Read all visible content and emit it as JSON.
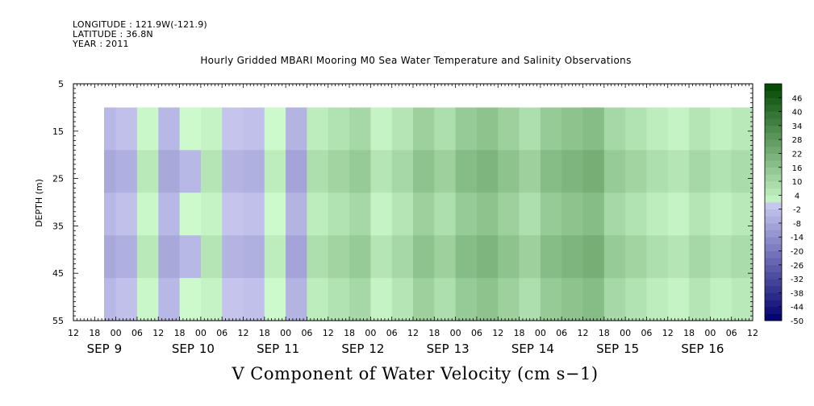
{
  "header": {
    "longitude": "LONGITUDE : 121.9W(-121.9)",
    "latitude": "LATITUDE : 36.8N",
    "year": "YEAR : 2011"
  },
  "chart_data": {
    "type": "heatmap",
    "title": "Hourly Gridded MBARI Mooring M0 Sea Water Temperature and Salinity Observations",
    "xlabel": "V Component of Water Velocity (cm s−1)",
    "ylabel": "DEPTH (m)",
    "y_range": [
      5,
      55
    ],
    "y_ticks": [
      5,
      15,
      25,
      35,
      45,
      55
    ],
    "y_inverted": true,
    "data_depth_range": [
      10,
      55
    ],
    "x_range_hours": [
      "SEP 8 12:00",
      "SEP 16 12:00"
    ],
    "hour_tick_labels": [
      "12",
      "18",
      "00",
      "06",
      "12",
      "18",
      "00",
      "06",
      "12",
      "18",
      "00",
      "06",
      "12",
      "18",
      "00",
      "06",
      "12",
      "18",
      "00",
      "06",
      "12",
      "18",
      "00",
      "06",
      "12",
      "18",
      "00",
      "06",
      "12",
      "18",
      "00",
      "06",
      "12"
    ],
    "data_start_hour_label": "SEP 8 18:00",
    "day_labels": [
      {
        "label": "SEP",
        "day": "9",
        "hour_index": 2
      },
      {
        "label": "SEP",
        "day": "10",
        "hour_index": 6
      },
      {
        "label": "SEP",
        "day": "11",
        "hour_index": 10
      },
      {
        "label": "SEP",
        "day": "12",
        "hour_index": 14
      },
      {
        "label": "SEP",
        "day": "13",
        "hour_index": 18
      },
      {
        "label": "SEP",
        "day": "14",
        "hour_index": 22
      },
      {
        "label": "SEP",
        "day": "15",
        "hour_index": 26
      },
      {
        "label": "SEP",
        "day": "16",
        "hour_index": 30
      }
    ],
    "colorbar": {
      "labels": [
        "46",
        "40",
        "34",
        "28",
        "22",
        "16",
        "10",
        "4",
        "-2",
        "-8",
        "-14",
        "-20",
        "-26",
        "-32",
        "-38",
        "-44",
        "-50"
      ],
      "range": [
        -50,
        52
      ],
      "step": 3,
      "colors": {
        "negative_max": "#000066",
        "zero": "#ddf5dd",
        "positive_max": "#004400"
      }
    },
    "profile_hours": [
      {
        "h": 6,
        "v": -6
      },
      {
        "h": 12,
        "v": -4
      },
      {
        "h": 18,
        "v": 3
      },
      {
        "h": 24,
        "v": -6
      },
      {
        "h": 30,
        "v": -2
      },
      {
        "h": 36,
        "v": 4
      },
      {
        "h": 42,
        "v": -3
      },
      {
        "h": 48,
        "v": -4
      },
      {
        "h": 54,
        "v": 2
      },
      {
        "h": 60,
        "v": -7
      },
      {
        "h": 66,
        "v": 6
      },
      {
        "h": 72,
        "v": 9
      },
      {
        "h": 78,
        "v": 12
      },
      {
        "h": 84,
        "v": 4
      },
      {
        "h": 90,
        "v": 8
      },
      {
        "h": 96,
        "v": 14
      },
      {
        "h": 102,
        "v": 10
      },
      {
        "h": 108,
        "v": 16
      },
      {
        "h": 114,
        "v": 18
      },
      {
        "h": 120,
        "v": 14
      },
      {
        "h": 126,
        "v": 10
      },
      {
        "h": 132,
        "v": 16
      },
      {
        "h": 138,
        "v": 18
      },
      {
        "h": 144,
        "v": 20
      },
      {
        "h": 150,
        "v": 12
      },
      {
        "h": 156,
        "v": 9
      },
      {
        "h": 162,
        "v": 6
      },
      {
        "h": 168,
        "v": 4
      },
      {
        "h": 174,
        "v": 8
      },
      {
        "h": 180,
        "v": 5
      },
      {
        "h": 186,
        "v": 7
      },
      {
        "h": 192,
        "v": 10
      }
    ]
  }
}
